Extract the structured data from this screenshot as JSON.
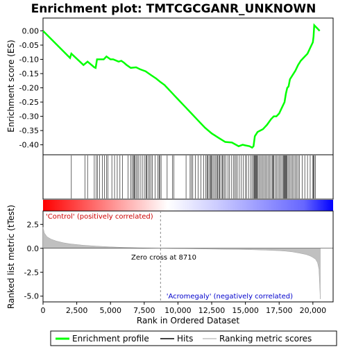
{
  "chart_data": {
    "type": "line",
    "title": "Enrichment plot: TMTCGCGANR_UNKNOWN",
    "top_panel": {
      "ylabel": "Enrichment score (ES)",
      "ylim": [
        -0.435,
        0.045
      ],
      "yticks": [
        0.0,
        -0.05,
        -0.1,
        -0.15,
        -0.2,
        -0.25,
        -0.3,
        -0.35,
        -0.4
      ],
      "ytick_labels": [
        "0.00",
        "-0.05",
        "-0.10",
        "-0.15",
        "-0.20",
        "-0.25",
        "-0.30",
        "-0.35",
        "-0.40"
      ],
      "series": [
        {
          "name": "Enrichment profile",
          "color": "#00ff00",
          "x": [
            0,
            2000,
            2100,
            3000,
            3300,
            3800,
            3900,
            4000,
            4050,
            4500,
            4700,
            5000,
            5200,
            5600,
            5800,
            6000,
            6200,
            6500,
            6900,
            7200,
            7600,
            8000,
            8400,
            8710,
            9000,
            9500,
            10000,
            10500,
            11000,
            11500,
            12000,
            12500,
            13000,
            13500,
            14000,
            14500,
            14800,
            15000,
            15300,
            15500,
            15600,
            15700,
            15900,
            16100,
            16300,
            16600,
            16900,
            17100,
            17300,
            17500,
            17700,
            17900,
            18000,
            18100,
            18200,
            18300,
            18500,
            18700,
            18900,
            19100,
            19300,
            19600,
            19800,
            20000,
            20050,
            20100,
            20200,
            20300,
            20500
          ],
          "y": [
            0.0,
            -0.095,
            -0.08,
            -0.12,
            -0.108,
            -0.128,
            -0.13,
            -0.1,
            -0.1,
            -0.1,
            -0.09,
            -0.1,
            -0.1,
            -0.108,
            -0.105,
            -0.112,
            -0.12,
            -0.13,
            -0.128,
            -0.135,
            -0.142,
            -0.155,
            -0.168,
            -0.18,
            -0.19,
            -0.215,
            -0.24,
            -0.265,
            -0.29,
            -0.315,
            -0.34,
            -0.36,
            -0.375,
            -0.39,
            -0.392,
            -0.405,
            -0.4,
            -0.402,
            -0.405,
            -0.41,
            -0.405,
            -0.37,
            -0.355,
            -0.35,
            -0.345,
            -0.33,
            -0.31,
            -0.3,
            -0.3,
            -0.29,
            -0.27,
            -0.25,
            -0.22,
            -0.2,
            -0.195,
            -0.17,
            -0.155,
            -0.14,
            -0.12,
            -0.105,
            -0.095,
            -0.08,
            -0.06,
            -0.04,
            -0.02,
            0.02,
            0.015,
            0.01,
            0.0
          ]
        }
      ]
    },
    "hits_panel": {
      "name": "Hits",
      "positions": [
        2100,
        3100,
        3300,
        3800,
        3950,
        4050,
        4200,
        4400,
        4550,
        4700,
        4800,
        5100,
        5300,
        5500,
        5700,
        5900,
        6300,
        6500,
        6600,
        6700,
        6750,
        6800,
        6900,
        7000,
        7100,
        7250,
        7400,
        7550,
        7650,
        7700,
        7800,
        7900,
        8000,
        8100,
        8300,
        8500,
        8600,
        8650,
        8750,
        9200,
        9600,
        9700,
        10600,
        10900,
        11000,
        11100,
        11300,
        11500,
        11700,
        11900,
        12050,
        12150,
        12200,
        12300,
        12400,
        12450,
        12500,
        12600,
        12700,
        12800,
        12900,
        12950,
        13050,
        13100,
        13200,
        13300,
        13350,
        13450,
        13550,
        13700,
        13800,
        13950,
        14100,
        14200,
        14300,
        14400,
        14550,
        14700,
        14850,
        15000,
        15100,
        15250,
        15400,
        15500,
        15600,
        15650,
        15700,
        15750,
        15800,
        15850,
        15900,
        16000,
        16100,
        16200,
        16300,
        16400,
        16500,
        16600,
        16700,
        16800,
        16900,
        17000,
        17050,
        17100,
        17200,
        17300,
        17400,
        17500,
        17600,
        17700,
        17800,
        17850,
        17900,
        17950,
        18000,
        18050,
        18100,
        18200,
        18300,
        18400,
        18500,
        18600,
        18700,
        18800,
        18900,
        19000,
        19200,
        19400,
        19600,
        19800,
        20000,
        20050,
        20100,
        20200
      ]
    },
    "bottom_panel": {
      "ylabel": "Ranked list metric (tTest)",
      "xlabel": "Rank in Ordered Dataset",
      "xlim": [
        0,
        21500
      ],
      "ylim": [
        -5.6,
        3.9
      ],
      "xticks": [
        0,
        2500,
        5000,
        7500,
        10000,
        12500,
        15000,
        17500,
        20000
      ],
      "xtick_labels": [
        "0",
        "2,500",
        "5,000",
        "7,500",
        "10,000",
        "12,500",
        "15,000",
        "17,500",
        "20,000"
      ],
      "yticks": [
        2.5,
        0.0,
        -2.5,
        -5.0
      ],
      "ytick_labels": [
        "2.5",
        "0.0",
        "-2.5",
        "-5.0"
      ],
      "series": [
        {
          "name": "Ranking metric scores",
          "color": "#c0c0c0",
          "x": [
            0,
            100,
            300,
            600,
            1000,
            1500,
            2000,
            3000,
            4000,
            5000,
            6000,
            7000,
            8000,
            8710,
            9500,
            10500,
            11500,
            12500,
            13500,
            14500,
            15500,
            16500,
            17500,
            18000,
            18500,
            19000,
            19500,
            19800,
            20000,
            20200,
            20350,
            20450,
            20500,
            20550
          ],
          "y": [
            2.2,
            1.6,
            1.2,
            0.95,
            0.75,
            0.58,
            0.46,
            0.32,
            0.22,
            0.15,
            0.09,
            0.05,
            0.02,
            0.0,
            -0.02,
            -0.04,
            -0.06,
            -0.08,
            -0.1,
            -0.12,
            -0.15,
            -0.19,
            -0.25,
            -0.3,
            -0.38,
            -0.5,
            -0.65,
            -0.8,
            -0.95,
            -1.15,
            -1.5,
            -2.2,
            -3.8,
            -5.3
          ]
        }
      ],
      "annotations": {
        "positive_label": "'Control' (positively correlated)",
        "negative_label": "'Acromegaly' (negatively correlated)",
        "zero_cross_label": "Zero cross at 8710",
        "zero_cross_x": 8710
      }
    },
    "legend": {
      "placement": "bottom",
      "entries": [
        {
          "label": "Enrichment profile",
          "color": "#00ff00"
        },
        {
          "label": "Hits",
          "color": "#000000"
        },
        {
          "label": "Ranking metric scores",
          "color": "#c0c0c0"
        }
      ]
    },
    "colors": {
      "profile": "#00ff00",
      "positive_label": "#cc0000",
      "negative_label": "#0000cc",
      "metric_fill": "#c0c0c0",
      "band_start": "#ff0000",
      "band_end": "#0000ff"
    }
  }
}
